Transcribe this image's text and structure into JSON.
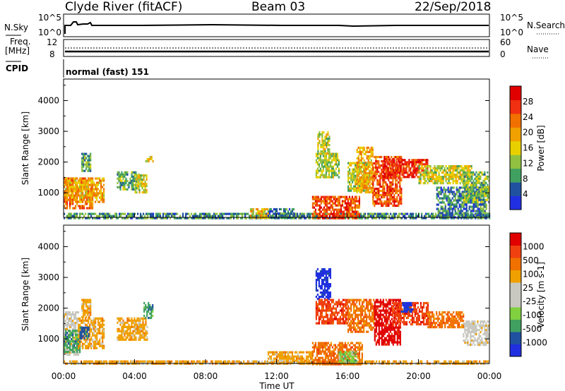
{
  "header": {
    "station": "Clyde River (fitACF)",
    "beam": "Beam 03",
    "date": "22/Sep/2018"
  },
  "status_panel": {
    "nsky_label": "N.Sky",
    "nsky_ticks": [
      "10^5",
      "10^0"
    ],
    "nsearch_label": "N.Search",
    "nsearch_ticks": [
      "10^5",
      "10^0"
    ],
    "freq_label": "Freq.",
    "freq_unit": "[MHz]",
    "freq_ticks": [
      "12",
      "8"
    ],
    "nave_label": "Nave",
    "nave_ticks": [
      "60",
      "0"
    ],
    "cpid_label": "CPID",
    "cpid_value": "normal (fast) 151"
  },
  "colors": {
    "power": [
      "#2030e0",
      "#2050a0",
      "#40a060",
      "#90c040",
      "#e8d000",
      "#f0a000",
      "#f07000",
      "#f03010",
      "#e00000"
    ],
    "velocity": [
      "#e00000",
      "#f04010",
      "#f07000",
      "#f0a000",
      "#c8c8c0",
      "#c8c8c0",
      "#80d040",
      "#40a060",
      "#2050a0",
      "#2030e0"
    ]
  },
  "chart_data": [
    {
      "type": "heatmap",
      "name": "power",
      "ylabel": "Slant Range [km]",
      "yticks": [
        "1000",
        "2000",
        "3000",
        "4000"
      ],
      "ylim": [
        200,
        4700
      ],
      "xticks": [
        "00:00",
        "04:00",
        "08:00",
        "12:00",
        "16:00",
        "20:00",
        "00:00"
      ],
      "xlim_hours": [
        0,
        24
      ],
      "colorbar_label": "Power [dB]",
      "colorbar_ticks": [
        "4",
        "8",
        "12",
        "16",
        "20",
        "24",
        "28"
      ],
      "colorbar_range": [
        0,
        30
      ],
      "regions": [
        {
          "t": [
            0.0,
            1.6
          ],
          "r": [
            500,
            1500
          ],
          "v": 22
        },
        {
          "t": [
            0.0,
            2.3
          ],
          "r": [
            700,
            1500
          ],
          "v": 18
        },
        {
          "t": [
            1.0,
            1.5
          ],
          "r": [
            1700,
            2300
          ],
          "v": 9
        },
        {
          "t": [
            3.0,
            4.2
          ],
          "r": [
            1100,
            1700
          ],
          "v": 10
        },
        {
          "t": [
            4.0,
            4.7
          ],
          "r": [
            1000,
            1600
          ],
          "v": 14
        },
        {
          "t": [
            4.6,
            5.0
          ],
          "r": [
            2000,
            2200
          ],
          "v": 16
        },
        {
          "t": [
            0.0,
            24.0
          ],
          "r": [
            200,
            350
          ],
          "v": 8
        },
        {
          "t": [
            10.5,
            11.6
          ],
          "r": [
            200,
            500
          ],
          "v": 16
        },
        {
          "t": [
            11.5,
            13.0
          ],
          "r": [
            200,
            500
          ],
          "v": 7
        },
        {
          "t": [
            14.0,
            16.7
          ],
          "r": [
            200,
            900
          ],
          "v": 24
        },
        {
          "t": [
            14.2,
            15.5
          ],
          "r": [
            1500,
            2300
          ],
          "v": 12
        },
        {
          "t": [
            14.3,
            15.0
          ],
          "r": [
            2300,
            3000
          ],
          "v": 14
        },
        {
          "t": [
            16.0,
            17.2
          ],
          "r": [
            1100,
            2000
          ],
          "v": 13
        },
        {
          "t": [
            16.5,
            17.4
          ],
          "r": [
            1000,
            2500
          ],
          "v": 18
        },
        {
          "t": [
            17.4,
            19.0
          ],
          "r": [
            600,
            2200
          ],
          "v": 24
        },
        {
          "t": [
            18.0,
            20.5
          ],
          "r": [
            1500,
            2100
          ],
          "v": 26
        },
        {
          "t": [
            20.0,
            23.0
          ],
          "r": [
            1300,
            1900
          ],
          "v": 14
        },
        {
          "t": [
            21.0,
            23.8
          ],
          "r": [
            200,
            1200
          ],
          "v": 7
        },
        {
          "t": [
            22.5,
            24.0
          ],
          "r": [
            700,
            1700
          ],
          "v": 11
        }
      ]
    },
    {
      "type": "heatmap",
      "name": "velocity",
      "ylabel": "Slant Range [km]",
      "yticks": [
        "1000",
        "2000",
        "3000",
        "4000"
      ],
      "ylim": [
        200,
        4700
      ],
      "xticks": [
        "00:00",
        "04:00",
        "08:00",
        "12:00",
        "16:00",
        "20:00",
        "00:00"
      ],
      "xlim_hours": [
        0,
        24
      ],
      "xlabel": "Time UT",
      "colorbar_label": "Velocity [m s-1]",
      "colorbar_ticks": [
        "1000",
        "500",
        "100",
        "25",
        "-25",
        "-100",
        "-500",
        "-1000"
      ],
      "regions": [
        {
          "t": [
            0.0,
            0.8
          ],
          "r": [
            500,
            1900
          ],
          "c": 4
        },
        {
          "t": [
            0.0,
            0.9
          ],
          "r": [
            600,
            1300
          ],
          "c": 7
        },
        {
          "t": [
            0.8,
            2.3
          ],
          "r": [
            700,
            1700
          ],
          "c": 3
        },
        {
          "t": [
            0.9,
            1.4
          ],
          "r": [
            1000,
            1400
          ],
          "c": 8
        },
        {
          "t": [
            1.0,
            1.5
          ],
          "r": [
            1700,
            2300
          ],
          "c": 3
        },
        {
          "t": [
            3.0,
            4.7
          ],
          "r": [
            1000,
            1700
          ],
          "c": 3
        },
        {
          "t": [
            4.5,
            5.0
          ],
          "r": [
            1700,
            2200
          ],
          "c": 7
        },
        {
          "t": [
            0.0,
            24.0
          ],
          "r": [
            200,
            300
          ],
          "c": 3
        },
        {
          "t": [
            11.5,
            14.0
          ],
          "r": [
            200,
            600
          ],
          "c": 3
        },
        {
          "t": [
            14.0,
            16.8
          ],
          "r": [
            200,
            900
          ],
          "c": 2
        },
        {
          "t": [
            15.5,
            16.5
          ],
          "r": [
            200,
            600
          ],
          "c": 6
        },
        {
          "t": [
            14.2,
            15.0
          ],
          "r": [
            2300,
            3300
          ],
          "c": 9
        },
        {
          "t": [
            14.2,
            16.0
          ],
          "r": [
            1500,
            2300
          ],
          "c": 1
        },
        {
          "t": [
            16.0,
            17.5
          ],
          "r": [
            1200,
            2300
          ],
          "c": 2
        },
        {
          "t": [
            17.5,
            19.0
          ],
          "r": [
            800,
            2300
          ],
          "c": 0
        },
        {
          "t": [
            18.5,
            20.5
          ],
          "r": [
            1500,
            2200
          ],
          "c": 1
        },
        {
          "t": [
            19.0,
            19.7
          ],
          "r": [
            1900,
            2200
          ],
          "c": 9
        },
        {
          "t": [
            20.5,
            22.5
          ],
          "r": [
            1400,
            1900
          ],
          "c": 2
        },
        {
          "t": [
            22.5,
            24.0
          ],
          "r": [
            800,
            1600
          ],
          "c": 4
        }
      ]
    }
  ]
}
